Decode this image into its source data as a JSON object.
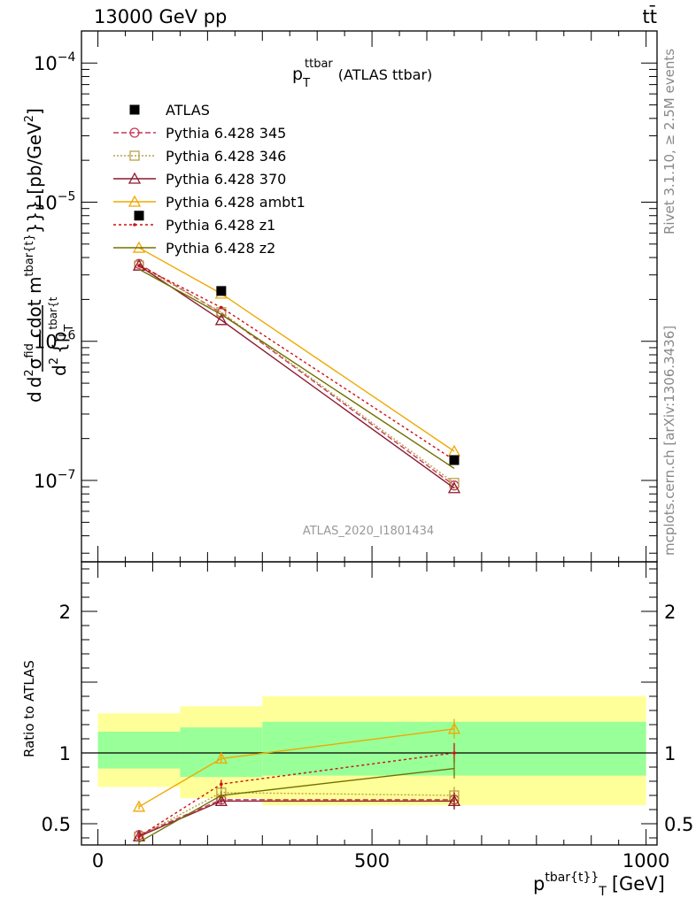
{
  "header": {
    "energy_label": "13000 GeV pp",
    "process_label": "tt̄"
  },
  "side_text": {
    "rivet": "Rivet 3.1.10, ≥ 2.5M events",
    "mcplots": "mcplots.cern.ch [arXiv:1306.3436]"
  },
  "analysis_label": "ATLAS_2020_I1801434",
  "colors": {
    "band_inner": "#99ff99",
    "band_outer": "#ffff99",
    "pythia_345": "#c43a5a",
    "pythia_346": "#b8a04a",
    "pythia_370": "#8b1a2e",
    "pythia_ambt1": "#f0a800",
    "pythia_z1": "#cc1111",
    "pythia_z2": "#707000"
  },
  "chart_data": [
    {
      "type": "line",
      "panel": "main",
      "title": "p_T^{ttbar} (ATLAS ttbar)",
      "title_main": "p",
      "title_sub": "T",
      "title_sup": "ttbar",
      "title_suffix": "(ATLAS ttbar)",
      "ylabel": "d d²σ^{fid} / d² {p_T^{tbar{t}}} cdot m^{tbar{t}}}} [pb/GeV²]",
      "ylabel_parts": {
        "d": "d",
        "num": "d",
        "num_sup": "2",
        "sigma": "σ",
        "sigma_sup": "fid",
        "den": "d",
        "den_sup": "2",
        "den_tail": "{p",
        "den_sub": "T",
        "den_sup2": "tbar{t",
        "mid": "cdot m",
        "mid_sup": "tbar{t}",
        "tail": "}}} [pb/GeV",
        "tail_sup": "2",
        "tail_end": "]"
      },
      "yscale": "log",
      "ylim": [
        2.6e-08,
        0.00017
      ],
      "xlim": [
        -30,
        1020
      ],
      "yticks_labeled": [
        {
          "value": 1e-07,
          "base": "10",
          "exp": "−7"
        },
        {
          "value": 1e-06,
          "base": "10",
          "exp": "−6"
        },
        {
          "value": 1e-05,
          "base": "10",
          "exp": "−5"
        },
        {
          "value": 0.0001,
          "base": "10",
          "exp": "−4"
        }
      ],
      "legend_position": "top-left",
      "x": [
        75,
        225,
        650
      ],
      "data": {
        "name": "ATLAS",
        "values": [
          8e-06,
          2.3e-06,
          1.4e-07
        ]
      },
      "series": [
        {
          "name": "Pythia 6.428 345",
          "key": "pythia_345",
          "marker": "circle",
          "dash": "6,3",
          "values": [
            3.6e-06,
            1.6e-06,
            9.2e-08
          ]
        },
        {
          "name": "Pythia 6.428 346",
          "key": "pythia_346",
          "marker": "square",
          "dash": "2,2",
          "values": [
            3.5e-06,
            1.62e-06,
            9.6e-08
          ]
        },
        {
          "name": "Pythia 6.428 370",
          "key": "pythia_370",
          "marker": "triangle",
          "dash": "",
          "values": [
            3.5e-06,
            1.42e-06,
            8.8e-08
          ]
        },
        {
          "name": "Pythia 6.428 ambt1",
          "key": "pythia_ambt1",
          "marker": "triangle",
          "dash": "",
          "values": [
            4.7e-06,
            2.2e-06,
            1.62e-07
          ]
        },
        {
          "name": "Pythia 6.428 z1",
          "key": "pythia_z1",
          "marker": "dot",
          "dash": "3,3",
          "values": [
            3.5e-06,
            1.75e-06,
            1.4e-07
          ]
        },
        {
          "name": "Pythia 6.428 z2",
          "key": "pythia_z2",
          "marker": "none",
          "dash": "",
          "values": [
            3.3e-06,
            1.56e-06,
            1.22e-07
          ]
        }
      ]
    },
    {
      "type": "line",
      "panel": "ratio",
      "ylabel": "Ratio to ATLAS",
      "xlabel_main": "p",
      "xlabel_sup": "tbar{t}",
      "xlabel_mid": "}",
      "xlabel_sub": "T",
      "xlabel_tail": "[GeV]",
      "ylim": [
        0.35,
        2.35
      ],
      "xlim": [
        -30,
        1020
      ],
      "xticks": [
        0,
        500,
        1000
      ],
      "yticks_labeled": [
        0.5,
        1,
        2
      ],
      "reference_line": 1,
      "bands": [
        {
          "x0": 0,
          "x1": 150,
          "inner": [
            0.89,
            1.15
          ],
          "outer": [
            0.76,
            1.28
          ]
        },
        {
          "x0": 150,
          "x1": 300,
          "inner": [
            0.83,
            1.18
          ],
          "outer": [
            0.68,
            1.33
          ]
        },
        {
          "x0": 300,
          "x1": 1000,
          "inner": [
            0.84,
            1.22
          ],
          "outer": [
            0.63,
            1.4
          ]
        }
      ],
      "x": [
        75,
        225,
        650
      ],
      "series": [
        {
          "name": "Pythia 6.428 345",
          "key": "pythia_345",
          "marker": "circle",
          "dash": "6,3",
          "values": [
            0.42,
            0.67,
            0.67
          ],
          "errors": [
            0.02,
            0.02,
            0.06
          ]
        },
        {
          "name": "Pythia 6.428 346",
          "key": "pythia_346",
          "marker": "square",
          "dash": "2,2",
          "values": [
            0.41,
            0.72,
            0.7
          ],
          "errors": [
            0.02,
            0.03,
            0.06
          ]
        },
        {
          "name": "Pythia 6.428 370",
          "key": "pythia_370",
          "marker": "triangle",
          "dash": "",
          "values": [
            0.41,
            0.66,
            0.66
          ],
          "errors": [
            0.02,
            0.02,
            0.06
          ]
        },
        {
          "name": "Pythia 6.428 ambt1",
          "key": "pythia_ambt1",
          "marker": "triangle",
          "dash": "",
          "values": [
            0.62,
            0.96,
            1.17
          ],
          "errors": [
            0.02,
            0.03,
            0.07
          ]
        },
        {
          "name": "Pythia 6.428 z1",
          "key": "pythia_z1",
          "marker": "dot",
          "dash": "3,3",
          "values": [
            0.41,
            0.78,
            1.0
          ],
          "errors": [
            0.02,
            0.03,
            0.07
          ]
        },
        {
          "name": "Pythia 6.428 z2",
          "key": "pythia_z2",
          "marker": "none",
          "dash": "",
          "values": [
            0.37,
            0.7,
            0.89
          ],
          "errors": [
            0.02,
            0.03,
            0.07
          ]
        }
      ]
    }
  ]
}
